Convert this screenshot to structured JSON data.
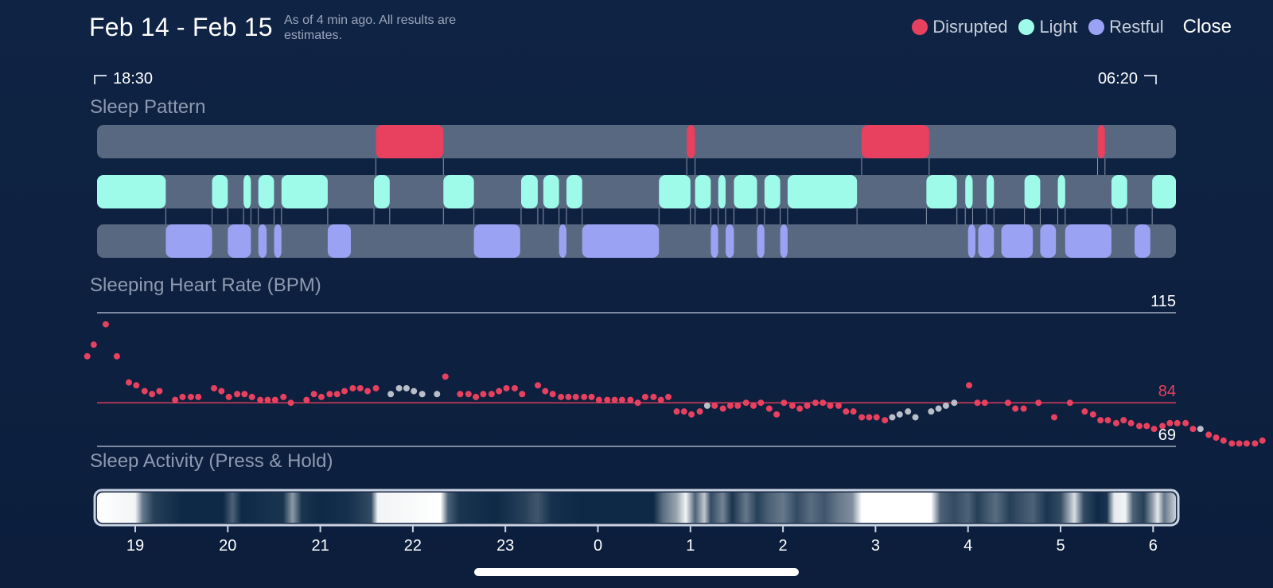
{
  "header": {
    "title": "Feb 14 - Feb 15",
    "subtitle": "As of 4 min ago. All results are estimates.",
    "legend": [
      {
        "label": "Disrupted",
        "color": "#e8405f"
      },
      {
        "label": "Light",
        "color": "#9efbe9"
      },
      {
        "label": "Restful",
        "color": "#9aa3f3"
      }
    ],
    "close_label": "Close"
  },
  "timeline": {
    "start": "18:30",
    "end": "06:20"
  },
  "sections": {
    "sleep_pattern": "Sleep Pattern",
    "heart_rate": "Sleeping Heart Rate (BPM)",
    "activity": "Sleep Activity (Press & Hold)"
  },
  "colors": {
    "disrupted": "#e8405f",
    "light": "#9efbe9",
    "restful": "#9aa3f3",
    "track": "#586880",
    "gray_dot": "#b9bec8",
    "avg_line": "#d93a5a"
  },
  "chart_data": [
    {
      "type": "timeline",
      "title": "Sleep Pattern",
      "time_range_hours": [
        18.5,
        30.33
      ],
      "tracks": {
        "disrupted": [
          [
            21.6,
            22.33
          ],
          [
            24.96,
            25.05
          ],
          [
            26.85,
            27.58
          ],
          [
            29.4,
            29.48
          ]
        ],
        "light": [
          [
            18.5,
            19.33
          ],
          [
            19.83,
            20.0
          ],
          [
            20.17,
            20.25
          ],
          [
            20.33,
            20.5
          ],
          [
            20.58,
            21.08
          ],
          [
            21.58,
            21.75
          ],
          [
            22.33,
            22.66
          ],
          [
            23.17,
            23.35
          ],
          [
            23.41,
            23.58
          ],
          [
            23.66,
            23.83
          ],
          [
            24.66,
            25.0
          ],
          [
            25.05,
            25.22
          ],
          [
            25.3,
            25.38
          ],
          [
            25.47,
            25.72
          ],
          [
            25.8,
            25.97
          ],
          [
            26.05,
            26.8
          ],
          [
            27.55,
            27.88
          ],
          [
            27.97,
            28.05
          ],
          [
            28.2,
            28.28
          ],
          [
            28.61,
            28.78
          ],
          [
            28.97,
            29.05
          ],
          [
            29.55,
            29.72
          ],
          [
            29.99,
            30.33
          ]
        ],
        "restful": [
          [
            19.33,
            19.83
          ],
          [
            20.0,
            20.25
          ],
          [
            20.33,
            20.42
          ],
          [
            20.5,
            20.58
          ],
          [
            21.08,
            21.33
          ],
          [
            22.66,
            23.16
          ],
          [
            23.58,
            23.66
          ],
          [
            23.83,
            24.66
          ],
          [
            25.22,
            25.3
          ],
          [
            25.38,
            25.47
          ],
          [
            25.72,
            25.8
          ],
          [
            25.97,
            26.05
          ],
          [
            28.0,
            28.08
          ],
          [
            28.11,
            28.28
          ],
          [
            28.36,
            28.7
          ],
          [
            28.78,
            28.95
          ],
          [
            29.05,
            29.55
          ],
          [
            29.8,
            29.97
          ]
        ]
      }
    },
    {
      "type": "scatter",
      "title": "Sleeping Heart Rate (BPM)",
      "ylim": [
        69,
        115
      ],
      "reference_lines": [
        {
          "value": 115,
          "label": "115"
        },
        {
          "value": 84,
          "label": "84"
        },
        {
          "value": 69,
          "label": "69"
        }
      ],
      "points": [
        [
          18.55,
          100,
          "d"
        ],
        [
          18.62,
          104,
          "d"
        ],
        [
          18.75,
          111,
          "d"
        ],
        [
          18.87,
          100,
          "d"
        ],
        [
          19.0,
          91,
          "d"
        ],
        [
          19.08,
          90,
          "d"
        ],
        [
          19.17,
          88,
          "d"
        ],
        [
          19.25,
          87,
          "d"
        ],
        [
          19.33,
          88,
          "d"
        ],
        [
          19.5,
          85,
          "d"
        ],
        [
          19.58,
          86,
          "d"
        ],
        [
          19.67,
          86,
          "d"
        ],
        [
          19.75,
          86,
          "d"
        ],
        [
          19.92,
          89,
          "d"
        ],
        [
          20.0,
          88,
          "d"
        ],
        [
          20.08,
          86,
          "d"
        ],
        [
          20.17,
          87,
          "d"
        ],
        [
          20.25,
          87,
          "d"
        ],
        [
          20.33,
          86,
          "d"
        ],
        [
          20.42,
          85,
          "d"
        ],
        [
          20.5,
          85,
          "d"
        ],
        [
          20.58,
          85,
          "d"
        ],
        [
          20.67,
          86,
          "d"
        ],
        [
          20.75,
          84,
          "d"
        ],
        [
          20.92,
          85,
          "d"
        ],
        [
          21.0,
          87,
          "d"
        ],
        [
          21.08,
          86,
          "d"
        ],
        [
          21.17,
          87,
          "d"
        ],
        [
          21.25,
          87,
          "d"
        ],
        [
          21.33,
          88,
          "d"
        ],
        [
          21.42,
          89,
          "d"
        ],
        [
          21.5,
          89,
          "d"
        ],
        [
          21.58,
          88,
          "d"
        ],
        [
          21.67,
          89,
          "d"
        ],
        [
          21.83,
          87,
          "g"
        ],
        [
          21.92,
          89,
          "g"
        ],
        [
          22.0,
          89,
          "g"
        ],
        [
          22.08,
          88,
          "g"
        ],
        [
          22.17,
          87,
          "g"
        ],
        [
          22.33,
          87,
          "g"
        ],
        [
          22.42,
          93,
          "d"
        ],
        [
          22.58,
          87,
          "d"
        ],
        [
          22.67,
          87,
          "d"
        ],
        [
          22.75,
          86,
          "d"
        ],
        [
          22.83,
          87,
          "d"
        ],
        [
          22.92,
          87,
          "d"
        ],
        [
          23.0,
          88,
          "d"
        ],
        [
          23.08,
          89,
          "d"
        ],
        [
          23.17,
          89,
          "d"
        ],
        [
          23.25,
          87,
          "d"
        ],
        [
          23.42,
          90,
          "d"
        ],
        [
          23.5,
          88,
          "d"
        ],
        [
          23.58,
          87,
          "d"
        ],
        [
          23.67,
          86,
          "d"
        ],
        [
          23.75,
          86,
          "d"
        ],
        [
          23.83,
          86,
          "d"
        ],
        [
          23.92,
          86,
          "d"
        ],
        [
          24.0,
          86,
          "d"
        ],
        [
          24.08,
          85,
          "d"
        ],
        [
          24.17,
          85,
          "d"
        ],
        [
          24.25,
          85,
          "d"
        ],
        [
          24.33,
          85,
          "d"
        ],
        [
          24.42,
          85,
          "d"
        ],
        [
          24.5,
          84,
          "d"
        ],
        [
          24.58,
          86,
          "d"
        ],
        [
          24.67,
          86,
          "d"
        ],
        [
          24.75,
          85,
          "d"
        ],
        [
          24.83,
          86,
          "d"
        ],
        [
          24.92,
          81,
          "d"
        ],
        [
          25.0,
          81,
          "d"
        ],
        [
          25.08,
          80,
          "d"
        ],
        [
          25.17,
          81,
          "d"
        ],
        [
          25.25,
          83,
          "g"
        ],
        [
          25.33,
          83,
          "d"
        ],
        [
          25.42,
          82,
          "d"
        ],
        [
          25.5,
          83,
          "d"
        ],
        [
          25.58,
          83,
          "d"
        ],
        [
          25.67,
          84,
          "d"
        ],
        [
          25.75,
          83,
          "d"
        ],
        [
          25.83,
          84,
          "d"
        ],
        [
          25.92,
          82,
          "d"
        ],
        [
          26.0,
          80,
          "d"
        ],
        [
          26.08,
          84,
          "d"
        ],
        [
          26.17,
          83,
          "d"
        ],
        [
          26.25,
          82,
          "d"
        ],
        [
          26.33,
          83,
          "d"
        ],
        [
          26.42,
          84,
          "d"
        ],
        [
          26.5,
          84,
          "d"
        ],
        [
          26.58,
          83,
          "d"
        ],
        [
          26.67,
          83,
          "d"
        ],
        [
          26.75,
          81,
          "d"
        ],
        [
          26.83,
          81,
          "d"
        ],
        [
          26.92,
          79,
          "d"
        ],
        [
          27.0,
          79,
          "d"
        ],
        [
          27.08,
          79,
          "d"
        ],
        [
          27.17,
          78,
          "d"
        ],
        [
          27.25,
          79,
          "g"
        ],
        [
          27.33,
          80,
          "g"
        ],
        [
          27.42,
          81,
          "g"
        ],
        [
          27.5,
          79,
          "g"
        ],
        [
          27.67,
          81,
          "g"
        ],
        [
          27.75,
          82,
          "g"
        ],
        [
          27.83,
          83,
          "g"
        ],
        [
          27.92,
          84,
          "g"
        ],
        [
          28.08,
          90,
          "d"
        ],
        [
          28.17,
          84,
          "d"
        ],
        [
          28.25,
          84,
          "d"
        ],
        [
          28.5,
          84,
          "d"
        ],
        [
          28.58,
          82,
          "d"
        ],
        [
          28.67,
          82,
          "d"
        ],
        [
          28.83,
          84,
          "d"
        ],
        [
          29.0,
          79,
          "d"
        ],
        [
          29.17,
          84,
          "d"
        ],
        [
          29.33,
          81,
          "d"
        ],
        [
          29.42,
          80,
          "d"
        ],
        [
          29.5,
          78,
          "d"
        ],
        [
          29.58,
          78,
          "d"
        ],
        [
          29.67,
          77,
          "d"
        ],
        [
          29.75,
          78,
          "d"
        ],
        [
          29.83,
          77,
          "d"
        ],
        [
          29.92,
          76,
          "d"
        ],
        [
          30.0,
          76,
          "d"
        ],
        [
          30.08,
          75,
          "d"
        ],
        [
          30.17,
          76,
          "d"
        ],
        [
          30.25,
          77,
          "d"
        ],
        [
          30.33,
          77,
          "d"
        ],
        [
          30.42,
          77,
          "d"
        ],
        [
          30.5,
          75,
          "d"
        ],
        [
          30.58,
          75,
          "g"
        ],
        [
          30.67,
          73,
          "d"
        ],
        [
          30.75,
          72,
          "d"
        ],
        [
          30.83,
          71,
          "d"
        ],
        [
          30.92,
          70,
          "d"
        ],
        [
          31.0,
          70,
          "d"
        ],
        [
          31.08,
          70,
          "d"
        ],
        [
          31.17,
          70,
          "d"
        ],
        [
          31.25,
          71,
          "d"
        ]
      ]
    },
    {
      "type": "heatmap",
      "title": "Sleep Activity (Press & Hold)",
      "x_tick_labels": [
        "19",
        "20",
        "21",
        "22",
        "23",
        "0",
        "1",
        "2",
        "3",
        "4",
        "5",
        "6"
      ],
      "x_tick_hours": [
        19,
        20,
        21,
        22,
        23,
        24,
        25,
        26,
        27,
        28,
        29,
        30
      ],
      "intensity": [
        [
          18.5,
          1.0
        ],
        [
          19.0,
          0.95
        ],
        [
          19.08,
          0.4
        ],
        [
          19.2,
          0.15
        ],
        [
          19.5,
          0.05
        ],
        [
          19.95,
          0.05
        ],
        [
          20.05,
          0.3
        ],
        [
          20.15,
          0.05
        ],
        [
          20.6,
          0.1
        ],
        [
          20.7,
          0.55
        ],
        [
          20.8,
          0.1
        ],
        [
          21.0,
          0.05
        ],
        [
          21.3,
          0.08
        ],
        [
          21.55,
          0.2
        ],
        [
          21.62,
          0.95
        ],
        [
          22.3,
          1.0
        ],
        [
          22.38,
          0.3
        ],
        [
          22.5,
          0.1
        ],
        [
          22.9,
          0.05
        ],
        [
          23.2,
          0.15
        ],
        [
          23.35,
          0.25
        ],
        [
          23.5,
          0.08
        ],
        [
          23.8,
          0.05
        ],
        [
          24.6,
          0.05
        ],
        [
          24.7,
          0.35
        ],
        [
          24.85,
          0.6
        ],
        [
          24.95,
          0.95
        ],
        [
          25.05,
          0.3
        ],
        [
          25.15,
          0.75
        ],
        [
          25.22,
          0.2
        ],
        [
          25.35,
          0.45
        ],
        [
          25.45,
          0.1
        ],
        [
          25.6,
          0.4
        ],
        [
          25.72,
          0.15
        ],
        [
          25.85,
          0.3
        ],
        [
          26.0,
          0.4
        ],
        [
          26.15,
          0.2
        ],
        [
          26.3,
          0.35
        ],
        [
          26.45,
          0.25
        ],
        [
          26.6,
          0.4
        ],
        [
          26.75,
          0.5
        ],
        [
          26.85,
          1.0
        ],
        [
          27.6,
          1.0
        ],
        [
          27.7,
          0.3
        ],
        [
          27.85,
          0.2
        ],
        [
          28.0,
          0.3
        ],
        [
          28.1,
          0.15
        ],
        [
          28.3,
          0.35
        ],
        [
          28.45,
          0.15
        ],
        [
          28.7,
          0.3
        ],
        [
          28.85,
          0.1
        ],
        [
          29.0,
          0.2
        ],
        [
          29.15,
          0.85
        ],
        [
          29.25,
          0.2
        ],
        [
          29.4,
          0.05
        ],
        [
          29.5,
          0.1
        ],
        [
          29.58,
          0.9
        ],
        [
          29.7,
          0.95
        ],
        [
          29.78,
          0.3
        ],
        [
          29.9,
          0.15
        ],
        [
          30.0,
          0.6
        ],
        [
          30.05,
          0.9
        ],
        [
          30.12,
          0.4
        ],
        [
          30.33,
          0.8
        ]
      ]
    }
  ]
}
